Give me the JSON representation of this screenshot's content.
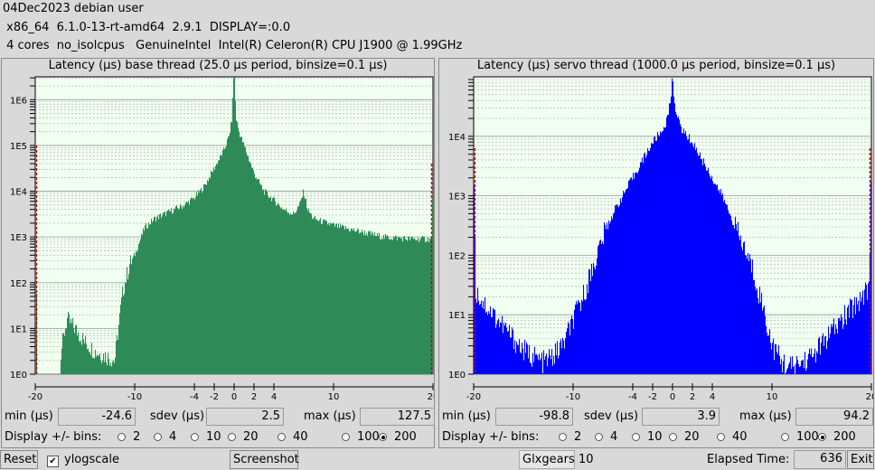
{
  "header": {
    "line1": "04Dec2023 debian user",
    "line2": " x86_64  6.1.0-13-rt-amd64  2.9.1  DISPLAY=:0.0",
    "line3": " 4 cores  no_isolcpus   GenuineIntel  Intel(R) Celeron(R) CPU J1900 @ 1.99GHz"
  },
  "base": {
    "title": "Latency (µs) base thread (25.0 µs period, binsize=0.1 µs)",
    "min_label": "min (µs)",
    "min_value": "-24.6",
    "sdev_label": "sdev (µs)",
    "sdev_value": "2.5",
    "max_label": "max (µs)",
    "max_value": "127.5",
    "bins_label": "Display +/- bins:",
    "bins_options": [
      "2",
      "4",
      "10",
      "20",
      "40",
      "100",
      "200"
    ],
    "bins_selected": "200",
    "color": "#2e8b57"
  },
  "servo": {
    "title": "Latency (µs) servo thread (1000.0 µs period, binsize=0.1 µs)",
    "min_label": "min (µs)",
    "min_value": "-98.8",
    "sdev_label": "sdev (µs)",
    "sdev_value": "3.9",
    "max_label": "max (µs)",
    "max_value": "94.2",
    "bins_label": "Display +/- bins:",
    "bins_options": [
      "2",
      "4",
      "10",
      "20",
      "40",
      "100",
      "200"
    ],
    "bins_selected": "200",
    "color": "#0000ff"
  },
  "footer": {
    "reset_label": "Reset",
    "ylogscale_label": "ylogscale",
    "ylogscale_checked": true,
    "screenshot_label": "Screenshot",
    "glxgears_label": "Glxgears",
    "glxgears_value": "10",
    "elapsed_label": "Elapsed Time:",
    "elapsed_value": "636",
    "exit_label": "Exit"
  },
  "chart_data": [
    {
      "type": "bar",
      "x_ticks": [
        "-20",
        "-10",
        "-4",
        "-2",
        "0",
        "2",
        "4",
        "10",
        "20"
      ],
      "x_tick_values": [
        -20,
        -10,
        -4,
        -2,
        0,
        2,
        4,
        10,
        20
      ],
      "y_scale": "log",
      "y_ticks": [
        "1E0",
        "1E1",
        "1E2",
        "1E3",
        "1E4",
        "1E5",
        "1E6"
      ],
      "xlim": [
        -20,
        20
      ],
      "ylim_log10": [
        0,
        6.5
      ],
      "envelope": [
        [
          -20,
          5.0
        ],
        [
          -19.8,
          0
        ],
        [
          -17.5,
          0
        ],
        [
          -17.4,
          0.5
        ],
        [
          -16.8,
          1.2
        ],
        [
          -16,
          1.0
        ],
        [
          -15,
          0.7
        ],
        [
          -14,
          0.5
        ],
        [
          -13,
          0.4
        ],
        [
          -12,
          0.3
        ],
        [
          -11.2,
          1.8
        ],
        [
          -10.5,
          2.4
        ],
        [
          -10,
          2.6
        ],
        [
          -9,
          3.2
        ],
        [
          -8,
          3.4
        ],
        [
          -7,
          3.5
        ],
        [
          -5,
          3.7
        ],
        [
          -4,
          3.85
        ],
        [
          -3,
          4.1
        ],
        [
          -2,
          4.5
        ],
        [
          -1,
          4.9
        ],
        [
          -0.5,
          5.2
        ],
        [
          -0.2,
          5.6
        ],
        [
          0,
          6.8
        ],
        [
          0.2,
          5.6
        ],
        [
          0.5,
          5.3
        ],
        [
          1,
          5.0
        ],
        [
          1.5,
          4.7
        ],
        [
          2,
          4.4
        ],
        [
          3,
          4.0
        ],
        [
          4,
          3.8
        ],
        [
          5,
          3.6
        ],
        [
          6,
          3.5
        ],
        [
          6.6,
          3.7
        ],
        [
          7,
          4.0
        ],
        [
          7.4,
          3.6
        ],
        [
          8,
          3.4
        ],
        [
          10,
          3.25
        ],
        [
          12,
          3.15
        ],
        [
          15,
          3.0
        ],
        [
          18,
          2.95
        ],
        [
          19.9,
          2.95
        ],
        [
          20,
          4.6
        ]
      ]
    },
    {
      "type": "bar",
      "x_ticks": [
        "-20",
        "-10",
        "-4",
        "-2",
        "0",
        "2",
        "4",
        "10",
        "20"
      ],
      "x_tick_values": [
        -20,
        -10,
        -4,
        -2,
        0,
        2,
        4,
        10,
        20
      ],
      "y_scale": "log",
      "y_ticks": [
        "1E0",
        "1E1",
        "1E2",
        "1E3",
        "1E4"
      ],
      "xlim": [
        -20,
        20
      ],
      "ylim_log10": [
        0,
        5
      ],
      "envelope": [
        [
          -20,
          3.8
        ],
        [
          -19.8,
          1.4
        ],
        [
          -19,
          1.2
        ],
        [
          -18,
          1.0
        ],
        [
          -17,
          0.8
        ],
        [
          -16,
          0.6
        ],
        [
          -15,
          0.4
        ],
        [
          -14,
          0.3
        ],
        [
          -13,
          0.2
        ],
        [
          -12,
          0.3
        ],
        [
          -11,
          0.5
        ],
        [
          -10,
          0.9
        ],
        [
          -9,
          1.3
        ],
        [
          -8,
          1.8
        ],
        [
          -7,
          2.3
        ],
        [
          -6,
          2.7
        ],
        [
          -5,
          3.0
        ],
        [
          -4,
          3.3
        ],
        [
          -3,
          3.6
        ],
        [
          -2,
          3.9
        ],
        [
          -1,
          4.1
        ],
        [
          -0.5,
          4.3
        ],
        [
          -0.2,
          4.6
        ],
        [
          0,
          5.0
        ],
        [
          0.2,
          4.6
        ],
        [
          0.5,
          4.3
        ],
        [
          1,
          4.1
        ],
        [
          2,
          3.9
        ],
        [
          3,
          3.6
        ],
        [
          4,
          3.3
        ],
        [
          5,
          3.0
        ],
        [
          6,
          2.6
        ],
        [
          7,
          2.2
        ],
        [
          8,
          1.8
        ],
        [
          9,
          1.2
        ],
        [
          10,
          0.5
        ],
        [
          11,
          0.2
        ],
        [
          12,
          0.1
        ],
        [
          13,
          0.2
        ],
        [
          14,
          0.3
        ],
        [
          15,
          0.5
        ],
        [
          16,
          0.7
        ],
        [
          17,
          0.9
        ],
        [
          18,
          1.1
        ],
        [
          19,
          1.3
        ],
        [
          19.8,
          1.5
        ],
        [
          20,
          3.8
        ]
      ]
    }
  ]
}
